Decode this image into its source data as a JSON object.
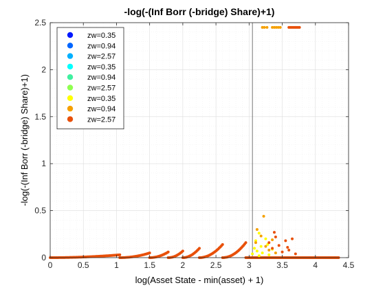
{
  "chart_data": {
    "type": "scatter",
    "title": "-log(-(Inf Borr (-bridge) Share)+1)",
    "xlabel": "log(Asset State - min(asset) + 1)",
    "ylabel": "-log(-(Inf Borr (-bridge) Share)+1)",
    "xlim": [
      0,
      4.5
    ],
    "ylim": [
      0,
      2.5
    ],
    "xticks": [
      "0",
      "0.5",
      "1",
      "1.5",
      "2",
      "2.5",
      "3",
      "3.5",
      "4",
      "4.5"
    ],
    "yticks": [
      "0",
      "0.5",
      "1",
      "1.5",
      "2",
      "2.5"
    ],
    "grid": "minor",
    "legend_position": "top-left",
    "reference_line_x": 3.05,
    "series": [
      {
        "name": "zw=0.35",
        "color": "#0019ff",
        "points": []
      },
      {
        "name": "zw=0.94",
        "color": "#0066ff",
        "points": []
      },
      {
        "name": "zw=2.57",
        "color": "#00b0ff",
        "points": []
      },
      {
        "name": "zw=0.35",
        "color": "#00ffff",
        "points": []
      },
      {
        "name": "zw=0.94",
        "color": "#40f0a0",
        "points": []
      },
      {
        "name": "zw=2.57",
        "color": "#90ff50",
        "points": []
      },
      {
        "name": "zw=0.35",
        "color": "#ffff00",
        "points": [
          [
            3.05,
            0.04
          ],
          [
            3.08,
            0.1
          ],
          [
            3.1,
            0.18
          ],
          [
            3.12,
            0.07
          ],
          [
            3.15,
            0.26
          ],
          [
            3.18,
            0.12
          ],
          [
            3.2,
            0.05
          ],
          [
            3.25,
            0.2
          ],
          [
            3.3,
            0.03
          ],
          [
            3.15,
            0.02
          ],
          [
            3.35,
            0.09
          ],
          [
            3.28,
            0.14
          ]
        ]
      },
      {
        "name": "zw=0.94",
        "color": "#f5a000",
        "points": [
          [
            3.2,
            2.45
          ],
          [
            3.23,
            2.45
          ],
          [
            3.27,
            2.45
          ],
          [
            3.35,
            2.45
          ],
          [
            3.38,
            2.45
          ],
          [
            3.41,
            2.45
          ],
          [
            3.44,
            2.45
          ],
          [
            3.47,
            2.45
          ],
          [
            3.22,
            0.44
          ],
          [
            3.1,
            0.16
          ],
          [
            3.18,
            0.23
          ],
          [
            3.25,
            0.12
          ],
          [
            3.3,
            0.08
          ],
          [
            3.35,
            0.19
          ],
          [
            3.4,
            0.05
          ],
          [
            3.12,
            0.3
          ]
        ]
      },
      {
        "name": "zw=2.57",
        "color": "#e8500a",
        "points": [
          [
            3.6,
            2.45
          ],
          [
            3.62,
            2.45
          ],
          [
            3.64,
            2.45
          ],
          [
            3.66,
            2.45
          ],
          [
            3.68,
            2.45
          ],
          [
            3.7,
            2.45
          ],
          [
            3.72,
            2.45
          ],
          [
            3.74,
            2.45
          ],
          [
            3.76,
            2.45
          ],
          [
            3.3,
            0.16
          ],
          [
            3.35,
            0.1
          ],
          [
            3.4,
            0.22
          ],
          [
            3.45,
            0.13
          ],
          [
            3.5,
            0.06
          ],
          [
            3.55,
            0.18
          ],
          [
            3.6,
            0.08
          ],
          [
            3.65,
            0.2
          ],
          [
            3.7,
            0.04
          ],
          [
            3.38,
            0.27
          ],
          [
            3.58,
            0.11
          ]
        ]
      }
    ],
    "ramp_segments": [
      {
        "series": 8,
        "x0": 0.0,
        "x1": 1.05,
        "y0": 0.0,
        "y1": 0.03
      },
      {
        "series": 8,
        "x0": 1.05,
        "x1": 1.5,
        "y0": 0.0,
        "y1": 0.05
      },
      {
        "series": 8,
        "x0": 1.5,
        "x1": 1.78,
        "y0": 0.0,
        "y1": 0.06
      },
      {
        "series": 8,
        "x0": 1.78,
        "x1": 2.0,
        "y0": 0.0,
        "y1": 0.07
      },
      {
        "series": 8,
        "x0": 2.0,
        "x1": 2.25,
        "y0": 0.0,
        "y1": 0.1
      },
      {
        "series": 8,
        "x0": 2.25,
        "x1": 2.6,
        "y0": 0.0,
        "y1": 0.14
      },
      {
        "series": 8,
        "x0": 2.6,
        "x1": 2.95,
        "y0": 0.0,
        "y1": 0.16
      },
      {
        "series": 8,
        "x0": 2.95,
        "x1": 4.35,
        "y0": 0.0,
        "y1": 0.0
      }
    ]
  }
}
